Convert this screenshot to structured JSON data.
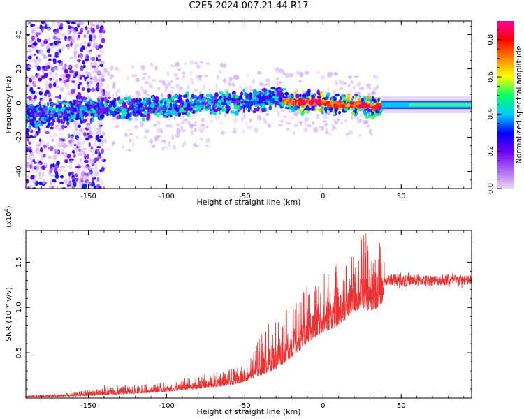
{
  "figure": {
    "title": "C2E5.2024.007.21.44.R17"
  },
  "chart_data": [
    {
      "type": "heatmap",
      "xlabel": "Height of straight line (km)",
      "ylabel": "Frequency (Hz)",
      "xlim": [
        -190,
        95
      ],
      "ylim": [
        -50,
        48
      ],
      "xticks": [
        -150,
        -100,
        -50,
        0,
        50
      ],
      "yticks": [
        -40,
        -20,
        0,
        20,
        40
      ],
      "colorbar": {
        "label": "Normalized spectral amplitude",
        "range": [
          0.0,
          0.9
        ],
        "ticks": [
          "0.0",
          "0.2",
          "0.4",
          "0.6",
          "0.8"
        ],
        "colormap": [
          "#e8d8f8",
          "#7a00f0",
          "#0000ff",
          "#00c8ff",
          "#00ff60",
          "#ffff00",
          "#ff8000",
          "#ff0000",
          "#ff00a0"
        ]
      },
      "center_line": {
        "x": [
          -190,
          -170,
          -150,
          -120,
          -90,
          -70,
          -50,
          -40,
          -30,
          -25,
          -20,
          -10,
          0,
          10,
          20,
          30,
          35,
          40,
          60,
          80,
          95
        ],
        "freq": [
          -8,
          -6,
          -4,
          -3,
          -1,
          0,
          1,
          2,
          4,
          2,
          0,
          1,
          0,
          -1,
          -1,
          -2,
          -2,
          -1,
          -1,
          -0.5,
          -0.5
        ]
      },
      "notes": "Broad low-amplitude spread (about -50 to 48 Hz) below -150 km; band of peaks within about +/-8 Hz from -150 to 35 km with highest amplitudes (0.8-0.9) near -20 to 35 km; stable narrow line near -1 Hz above 35 km."
    },
    {
      "type": "line",
      "xlabel": "Height of straight line (km)",
      "ylabel": "SNR (10 * v/v)",
      "yscale_label": "(x10",
      "yscale_exp": "4",
      "yscale_close": ")",
      "xlim": [
        -190,
        95
      ],
      "ylim": [
        0,
        1.85
      ],
      "xticks": [
        -150,
        -100,
        -50,
        0,
        50
      ],
      "yticks": [
        0.5,
        1.0,
        1.5
      ],
      "ytick_labels": [
        "0.5",
        "1.0",
        "1.5"
      ],
      "color": "#ee3030",
      "envelope": {
        "x": [
          -190,
          -160,
          -140,
          -120,
          -100,
          -80,
          -60,
          -50,
          -40,
          -30,
          -20,
          -10,
          0,
          10,
          20,
          25,
          30,
          35,
          38,
          40,
          60,
          80,
          95
        ],
        "base": [
          0.01,
          0.02,
          0.03,
          0.05,
          0.07,
          0.1,
          0.14,
          0.18,
          0.25,
          0.32,
          0.45,
          0.6,
          0.72,
          0.8,
          0.95,
          1.0,
          0.95,
          1.0,
          1.05,
          1.3,
          1.3,
          1.3,
          1.3
        ],
        "peak": [
          0.03,
          0.06,
          0.14,
          0.14,
          0.18,
          0.25,
          0.32,
          0.36,
          0.7,
          0.95,
          1.0,
          1.25,
          1.4,
          1.55,
          1.6,
          1.85,
          1.8,
          1.75,
          1.7,
          1.37,
          1.38,
          1.4,
          1.4
        ]
      }
    }
  ]
}
